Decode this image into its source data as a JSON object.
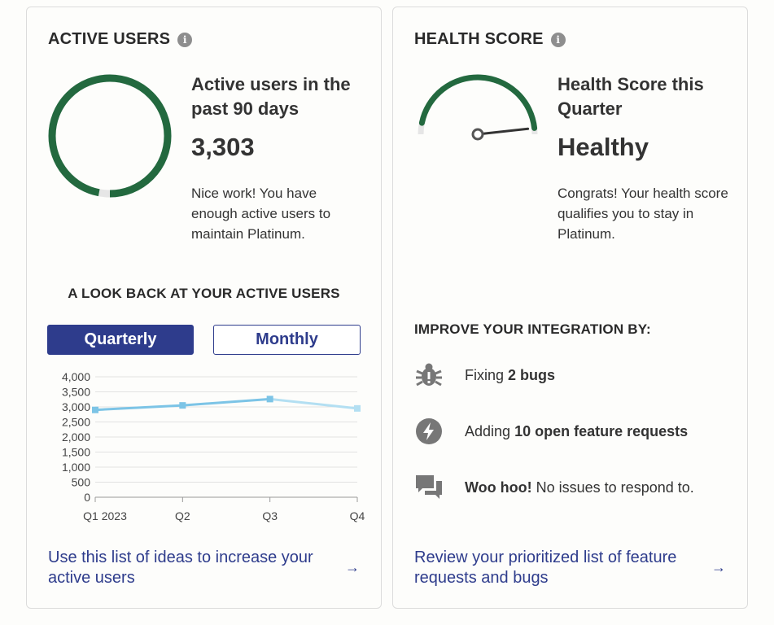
{
  "active_users": {
    "title": "ACTIVE USERS",
    "info_icon": "i",
    "stat_title": "Active users in the past 90 days",
    "stat_value": "3,303",
    "ring_fill_fraction": 0.97,
    "description": "Nice work! You have enough active users to maintain Platinum.",
    "look_back_title": "A LOOK BACK AT YOUR ACTIVE USERS",
    "toggle_quarterly": "Quarterly",
    "toggle_monthly": "Monthly",
    "link_text": "Use this list of ideas to increase your active users",
    "link_arrow": "→"
  },
  "health_score": {
    "title": "HEALTH SCORE",
    "info_icon": "i",
    "stat_title": "Health Score this Quarter",
    "stat_value": "Healthy",
    "gauge_fraction": 0.8,
    "description": "Congrats! Your health score qualifies you to stay in Platinum.",
    "improve_title": "IMPROVE YOUR INTEGRATION BY:",
    "tasks": [
      {
        "icon": "bug-icon",
        "prefix": "Fixing ",
        "bold": "2 bugs",
        "suffix": ""
      },
      {
        "icon": "lightning-icon",
        "prefix": "Adding ",
        "bold": "10 open feature requests",
        "suffix": ""
      },
      {
        "icon": "chat-icon",
        "prefix": "",
        "bold": "Woo hoo!",
        "suffix": " No issues to respond to."
      }
    ],
    "link_text": "Review your prioritized list of feature requests and bugs",
    "link_arrow": "→"
  },
  "colors": {
    "ring_green": "#23693f",
    "track_gray": "#e6e6e6",
    "brand_blue": "#2e3c8c",
    "line_dark": "#7cc4e6",
    "line_light": "#b3dff2"
  },
  "chart_data": {
    "type": "line",
    "categories": [
      "Q1 2023",
      "Q2",
      "Q3",
      "Q4"
    ],
    "series": [
      {
        "values": [
          2900,
          3050,
          3260,
          2950
        ]
      }
    ],
    "yticks": [
      "4,000",
      "3,500",
      "3,000",
      "2,500",
      "2,000",
      "1,500",
      "1,000",
      "500",
      "0"
    ],
    "ylim": [
      0,
      4000
    ],
    "grid": true
  }
}
